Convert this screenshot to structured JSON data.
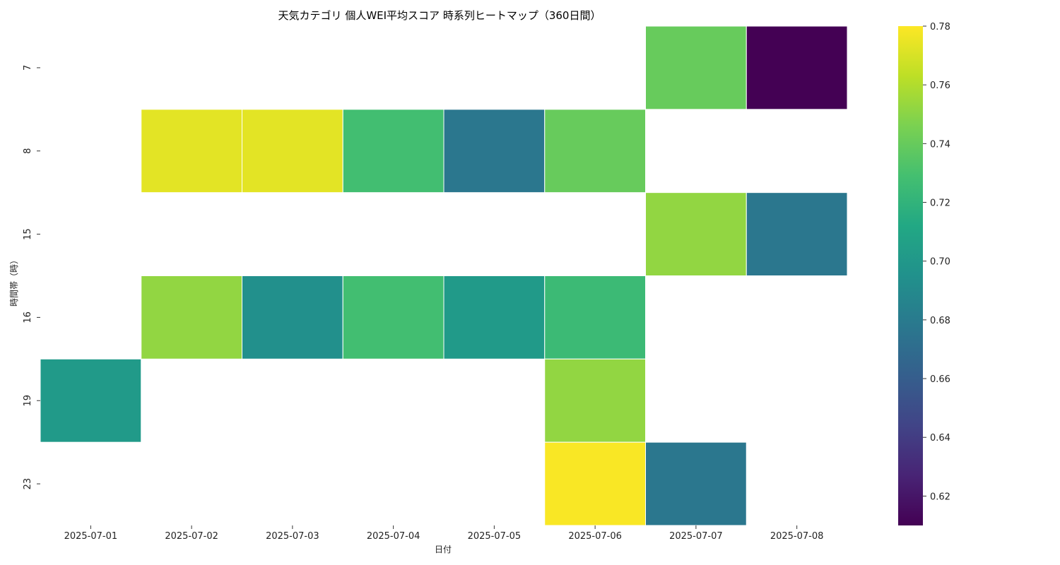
{
  "chart_data": {
    "type": "heatmap",
    "title": "天気カテゴリ 個人WEI平均スコア 時系列ヒートマップ（360日間）",
    "xlabel": "日付",
    "ylabel": "時間帯（時）",
    "x": [
      "2025-07-01",
      "2025-07-02",
      "2025-07-03",
      "2025-07-04",
      "2025-07-05",
      "2025-07-06",
      "2025-07-07",
      "2025-07-08"
    ],
    "y": [
      "7",
      "8",
      "15",
      "16",
      "19",
      "23"
    ],
    "values": [
      [
        null,
        null,
        null,
        null,
        null,
        null,
        0.74,
        0.61
      ],
      [
        null,
        0.773,
        0.773,
        0.728,
        0.677,
        0.74,
        null,
        null
      ],
      [
        null,
        null,
        null,
        null,
        null,
        null,
        0.752,
        0.677
      ],
      [
        null,
        0.752,
        0.694,
        0.728,
        0.702,
        0.725,
        null,
        null
      ],
      [
        0.702,
        null,
        null,
        null,
        null,
        0.752,
        null,
        null
      ],
      [
        null,
        null,
        null,
        null,
        null,
        0.779,
        0.677,
        null
      ]
    ],
    "colormap": "viridis",
    "vmin": 0.61,
    "vmax": 0.78,
    "colorbar_ticks": [
      "0.62",
      "0.64",
      "0.66",
      "0.68",
      "0.70",
      "0.72",
      "0.74",
      "0.76",
      "0.78"
    ],
    "colorbar_tick_values": [
      0.62,
      0.64,
      0.66,
      0.68,
      0.7,
      0.72,
      0.74,
      0.76,
      0.78
    ],
    "grid": false,
    "legend": "colorbar-right"
  }
}
